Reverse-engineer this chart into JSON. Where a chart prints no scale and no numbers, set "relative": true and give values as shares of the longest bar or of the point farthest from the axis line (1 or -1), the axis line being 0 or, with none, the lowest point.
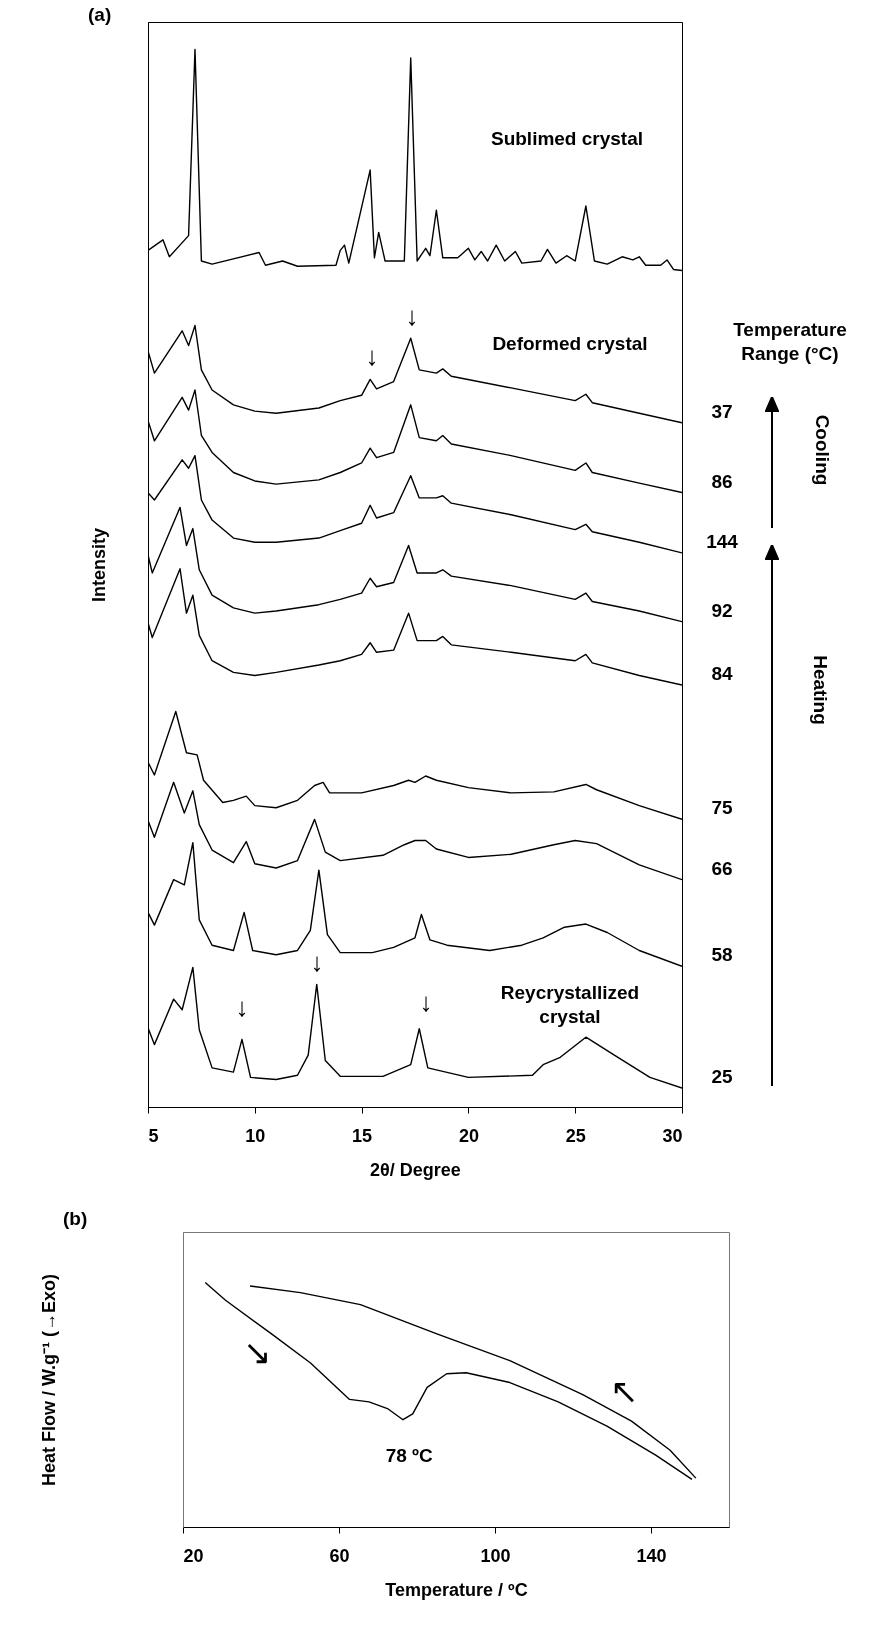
{
  "chart_data": [
    {
      "type": "line",
      "title": "(a)",
      "xlabel": "2θ/ Degree",
      "ylabel": "Intensity",
      "relative": true,
      "xlim": [
        5,
        30
      ],
      "xticks": [
        5,
        10,
        15,
        20,
        25,
        30
      ],
      "tick_labels": "x",
      "series": [
        {
          "color": "#000000",
          "x": [
            5,
            5.7,
            6,
            6.9,
            7.2,
            7.5,
            8,
            10.2,
            10.5,
            11.3,
            12,
            13.8,
            14,
            14.2,
            14.4,
            15.4,
            15.6,
            15.8,
            16.1,
            17,
            17.3,
            17.6,
            18,
            18.2,
            18.5,
            18.8,
            19.5,
            20,
            20.3,
            20.6,
            20.9,
            21.3,
            21.7,
            22.2,
            22.5,
            23.4,
            23.7,
            24.1,
            24.6,
            25,
            25.5,
            25.9,
            26.5,
            27.2,
            27.7,
            28,
            28.3,
            29,
            29.3,
            29.6,
            30
          ],
          "values": [
            0.81,
            0.82,
            0.804,
            0.824,
            1.0,
            0.8,
            0.797,
            0.808,
            0.796,
            0.8,
            0.795,
            0.796,
            0.81,
            0.815,
            0.798,
            0.886,
            0.803,
            0.827,
            0.8,
            0.8,
            0.992,
            0.8,
            0.812,
            0.805,
            0.848,
            0.803,
            0.803,
            0.812,
            0.801,
            0.809,
            0.8,
            0.815,
            0.8,
            0.809,
            0.798,
            0.8,
            0.811,
            0.798,
            0.805,
            0.8,
            0.852,
            0.8,
            0.797,
            0.804,
            0.801,
            0.804,
            0.796,
            0.796,
            0.801,
            0.792,
            0.791
          ]
        },
        {
          "name": "37",
          "color": "#000000",
          "x": [
            5,
            5.3,
            6.6,
            6.9,
            7.2,
            7.5,
            8,
            9,
            10,
            11,
            13,
            14,
            15,
            15.4,
            15.7,
            16.5,
            17.3,
            17.7,
            18.5,
            18.8,
            19.2,
            22,
            25,
            25.5,
            25.8,
            28,
            30
          ],
          "values": [
            0.715,
            0.694,
            0.734,
            0.72,
            0.739,
            0.697,
            0.678,
            0.664,
            0.658,
            0.656,
            0.661,
            0.668,
            0.673,
            0.688,
            0.679,
            0.686,
            0.727,
            0.697,
            0.694,
            0.698,
            0.691,
            0.68,
            0.668,
            0.674,
            0.666,
            0.656,
            0.647
          ]
        },
        {
          "name": "86",
          "color": "#000000",
          "x": [
            5,
            5.3,
            6.6,
            6.9,
            7.2,
            7.5,
            8,
            9,
            10,
            11,
            13,
            14,
            15,
            15.4,
            15.7,
            16.5,
            17.3,
            17.7,
            18.5,
            18.8,
            19.2,
            22,
            25,
            25.5,
            25.8,
            28,
            30
          ],
          "values": [
            0.649,
            0.63,
            0.671,
            0.659,
            0.678,
            0.635,
            0.619,
            0.6,
            0.592,
            0.589,
            0.593,
            0.6,
            0.609,
            0.623,
            0.614,
            0.619,
            0.664,
            0.633,
            0.63,
            0.635,
            0.627,
            0.616,
            0.602,
            0.609,
            0.6,
            0.59,
            0.581
          ]
        },
        {
          "name": "144",
          "color": "#000000",
          "x": [
            5,
            5.3,
            6.6,
            6.9,
            7.2,
            7.5,
            8,
            9,
            10,
            11,
            13,
            14,
            15,
            15.4,
            15.7,
            16.5,
            17.3,
            17.7,
            18.5,
            18.8,
            19.2,
            22,
            25,
            25.5,
            25.8,
            28,
            30
          ],
          "values": [
            0.581,
            0.574,
            0.612,
            0.604,
            0.616,
            0.574,
            0.555,
            0.538,
            0.534,
            0.534,
            0.538,
            0.545,
            0.552,
            0.569,
            0.557,
            0.562,
            0.597,
            0.576,
            0.576,
            0.578,
            0.571,
            0.56,
            0.546,
            0.551,
            0.544,
            0.534,
            0.524
          ]
        },
        {
          "name": "92",
          "color": "#000000",
          "x": [
            5,
            5.2,
            6.5,
            6.8,
            7.1,
            7.4,
            8,
            9,
            10,
            11,
            13,
            14,
            15,
            15.4,
            15.7,
            16.5,
            17.2,
            17.6,
            18.5,
            18.8,
            19.2,
            22,
            25,
            25.5,
            25.8,
            28,
            30
          ],
          "values": [
            0.522,
            0.505,
            0.567,
            0.531,
            0.547,
            0.508,
            0.484,
            0.472,
            0.467,
            0.469,
            0.475,
            0.48,
            0.486,
            0.5,
            0.492,
            0.496,
            0.531,
            0.505,
            0.505,
            0.508,
            0.502,
            0.493,
            0.48,
            0.486,
            0.478,
            0.469,
            0.459
          ]
        },
        {
          "name": "84",
          "color": "#000000",
          "x": [
            5,
            5.2,
            6.5,
            6.8,
            7.1,
            7.4,
            8,
            9,
            10,
            11,
            13,
            14,
            15,
            15.4,
            15.7,
            16.5,
            17.2,
            17.6,
            18.5,
            18.8,
            19.2,
            22,
            25,
            25.5,
            25.8,
            28,
            30
          ],
          "values": [
            0.458,
            0.444,
            0.509,
            0.467,
            0.484,
            0.446,
            0.422,
            0.411,
            0.408,
            0.411,
            0.418,
            0.422,
            0.428,
            0.439,
            0.43,
            0.432,
            0.467,
            0.441,
            0.441,
            0.445,
            0.437,
            0.43,
            0.422,
            0.428,
            0.42,
            0.408,
            0.399
          ]
        },
        {
          "name": "75",
          "color": "#000000",
          "x": [
            5,
            5.3,
            6.3,
            6.8,
            7.3,
            7.6,
            8.5,
            9,
            9.6,
            10,
            11,
            12,
            12.8,
            13.2,
            13.5,
            15,
            16.5,
            17.2,
            17.5,
            18,
            18.5,
            20,
            22,
            24,
            25.5,
            26,
            28,
            30
          ],
          "values": [
            0.326,
            0.314,
            0.374,
            0.335,
            0.333,
            0.309,
            0.288,
            0.29,
            0.294,
            0.285,
            0.283,
            0.29,
            0.304,
            0.307,
            0.297,
            0.297,
            0.304,
            0.309,
            0.307,
            0.313,
            0.309,
            0.302,
            0.297,
            0.298,
            0.305,
            0.3,
            0.285,
            0.272
          ]
        },
        {
          "name": "66",
          "color": "#000000",
          "x": [
            5,
            5.3,
            6.2,
            6.7,
            7.1,
            7.4,
            8,
            9,
            9.6,
            10,
            11,
            12,
            12.8,
            13.3,
            14,
            16,
            17,
            17.5,
            18,
            18.5,
            20,
            22,
            24,
            25,
            26,
            28,
            30
          ],
          "values": [
            0.271,
            0.255,
            0.307,
            0.278,
            0.299,
            0.267,
            0.243,
            0.231,
            0.251,
            0.23,
            0.226,
            0.233,
            0.272,
            0.241,
            0.233,
            0.238,
            0.248,
            0.252,
            0.252,
            0.244,
            0.236,
            0.239,
            0.248,
            0.252,
            0.249,
            0.229,
            0.215
          ]
        },
        {
          "name": "58",
          "color": "#000000",
          "x": [
            5,
            5.3,
            6.2,
            6.7,
            7.1,
            7.4,
            8,
            9,
            9.5,
            9.9,
            11,
            12,
            12.6,
            13,
            13.4,
            14,
            15.5,
            16.5,
            17.5,
            17.8,
            18.2,
            19,
            21,
            22.5,
            23.5,
            24.5,
            25.5,
            26.5,
            28,
            30
          ],
          "values": [
            0.184,
            0.172,
            0.215,
            0.21,
            0.25,
            0.177,
            0.153,
            0.148,
            0.184,
            0.148,
            0.144,
            0.148,
            0.167,
            0.224,
            0.163,
            0.146,
            0.146,
            0.151,
            0.16,
            0.182,
            0.158,
            0.153,
            0.148,
            0.153,
            0.16,
            0.17,
            0.173,
            0.165,
            0.148,
            0.133
          ]
        },
        {
          "name": "25",
          "color": "#000000",
          "x": [
            5,
            5.3,
            6.2,
            6.6,
            7.1,
            7.4,
            8,
            9,
            9.4,
            9.8,
            11,
            12,
            12.5,
            12.9,
            13.3,
            14,
            16,
            17.3,
            17.7,
            18.1,
            20,
            23,
            23.5,
            24.3,
            25.5,
            27,
            28.5,
            30
          ],
          "values": [
            0.075,
            0.059,
            0.102,
            0.092,
            0.132,
            0.073,
            0.037,
            0.033,
            0.064,
            0.028,
            0.026,
            0.03,
            0.049,
            0.116,
            0.044,
            0.029,
            0.029,
            0.04,
            0.074,
            0.037,
            0.028,
            0.03,
            0.04,
            0.047,
            0.066,
            0.047,
            0.028,
            0.018
          ]
        }
      ],
      "legend": "right",
      "annotations": [
        "Sublimed crystal",
        "Deformed crystal",
        "Reycrystallized crystal",
        "↓",
        "↓",
        "↓",
        "↓",
        "↓",
        "Temperature Range (°C)",
        "Cooling",
        "Heating"
      ]
    },
    {
      "type": "line",
      "title": "(b)",
      "xlabel": "Temperature / ºC",
      "ylabel": "Heat Flow / W.g⁻¹ (→Exo)",
      "relative": true,
      "xlim": [
        20,
        160
      ],
      "xticks": [
        20,
        60,
        100,
        140
      ],
      "tick_labels": "x",
      "series": [
        {
          "color": "#000000",
          "x": [
            25.7,
            30.9,
            42.7,
            52.7,
            62.7,
            67.7,
            72.6,
            76.4,
            78.9,
            82.6,
            87.6,
            92.6,
            103.8,
            116.2,
            128.7,
            141.2,
            150.5
          ],
          "values": [
            1.0,
            0.928,
            0.79,
            0.671,
            0.522,
            0.512,
            0.483,
            0.439,
            0.463,
            0.571,
            0.627,
            0.631,
            0.591,
            0.512,
            0.413,
            0.294,
            0.195
          ]
        },
        {
          "color": "#000000",
          "x": [
            151.5,
            144.9,
            135,
            122.5,
            103.8,
            85.1,
            65.5,
            50.1,
            37.2
          ],
          "values": [
            0.2,
            0.314,
            0.433,
            0.542,
            0.681,
            0.79,
            0.91,
            0.959,
            0.986
          ]
        }
      ],
      "annotations": [
        {
          "text": "78 ºC",
          "x": 78,
          "y": 0.439
        },
        "↘",
        "↖"
      ]
    }
  ]
}
